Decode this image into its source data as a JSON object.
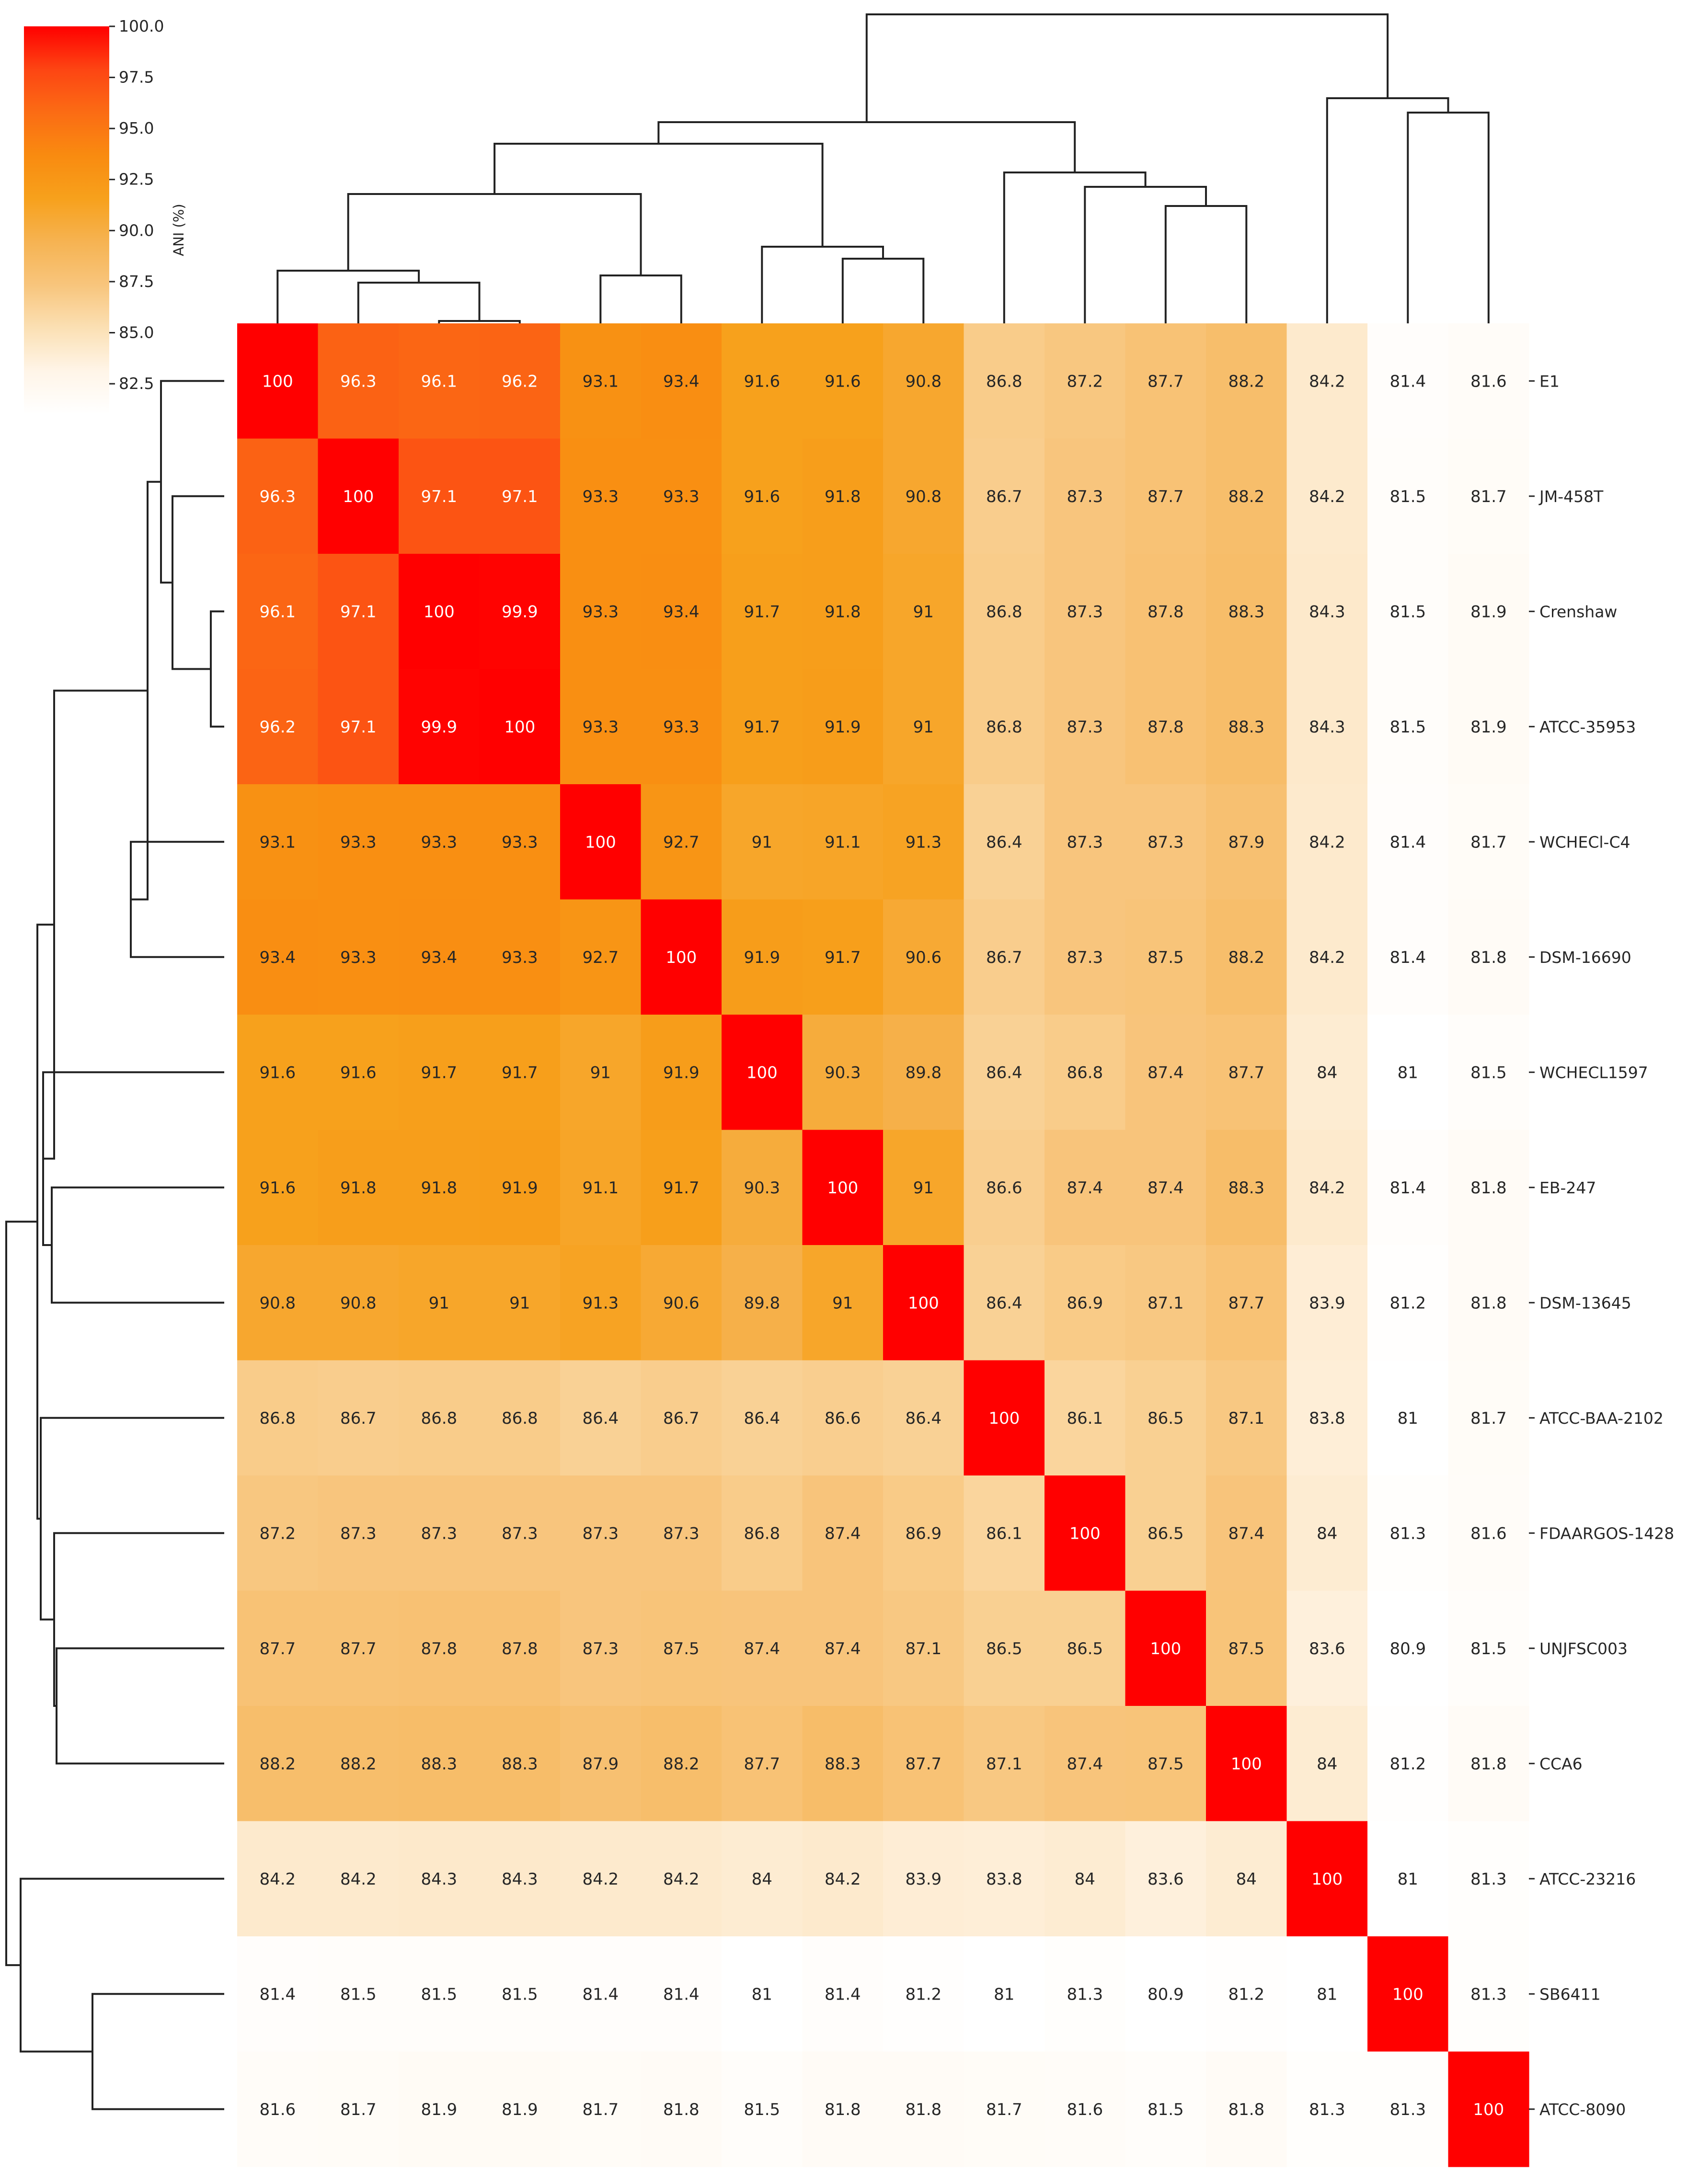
{
  "chart_data": {
    "type": "heatmap",
    "title": "",
    "xlabel": "",
    "ylabel": "",
    "labels": [
      "E1",
      "JM-458T",
      "Crenshaw",
      "ATCC-35953",
      "WCHECl-C4",
      "DSM-16690",
      "WCHECL1597",
      "EB-247",
      "DSM-13645",
      "ATCC-BAA-2102",
      "FDAARGOS-1428",
      "UNJFSC003",
      "CCA6",
      "ATCC-23216",
      "SB6411",
      "ATCC-8090"
    ],
    "matrix": [
      [
        100,
        96.3,
        96.1,
        96.2,
        93.1,
        93.4,
        91.6,
        91.6,
        90.8,
        86.8,
        87.2,
        87.7,
        88.2,
        84.2,
        81.4,
        81.6
      ],
      [
        96.3,
        100,
        97.1,
        97.1,
        93.3,
        93.3,
        91.6,
        91.8,
        90.8,
        86.7,
        87.3,
        87.7,
        88.2,
        84.2,
        81.5,
        81.7
      ],
      [
        96.1,
        97.1,
        100,
        99.9,
        93.3,
        93.4,
        91.7,
        91.8,
        91,
        86.8,
        87.3,
        87.8,
        88.3,
        84.3,
        81.5,
        81.9
      ],
      [
        96.2,
        97.1,
        99.9,
        100,
        93.3,
        93.3,
        91.7,
        91.9,
        91,
        86.8,
        87.3,
        87.8,
        88.3,
        84.3,
        81.5,
        81.9
      ],
      [
        93.1,
        93.3,
        93.3,
        93.3,
        100,
        92.7,
        91,
        91.1,
        91.3,
        86.4,
        87.3,
        87.3,
        87.9,
        84.2,
        81.4,
        81.7
      ],
      [
        93.4,
        93.3,
        93.4,
        93.3,
        92.7,
        100,
        91.9,
        91.7,
        90.6,
        86.7,
        87.3,
        87.5,
        88.2,
        84.2,
        81.4,
        81.8
      ],
      [
        91.6,
        91.6,
        91.7,
        91.7,
        91,
        91.9,
        100,
        90.3,
        89.8,
        86.4,
        86.8,
        87.4,
        87.7,
        84,
        81,
        81.5
      ],
      [
        91.6,
        91.8,
        91.8,
        91.9,
        91.1,
        91.7,
        90.3,
        100,
        91,
        86.6,
        87.4,
        87.4,
        88.3,
        84.2,
        81.4,
        81.8
      ],
      [
        90.8,
        90.8,
        91,
        91,
        91.3,
        90.6,
        89.8,
        91,
        100,
        86.4,
        86.9,
        87.1,
        87.7,
        83.9,
        81.2,
        81.8
      ],
      [
        86.8,
        86.7,
        86.8,
        86.8,
        86.4,
        86.7,
        86.4,
        86.6,
        86.4,
        100,
        86.1,
        86.5,
        87.1,
        83.8,
        81,
        81.7
      ],
      [
        87.2,
        87.3,
        87.3,
        87.3,
        87.3,
        87.3,
        86.8,
        87.4,
        86.9,
        86.1,
        100,
        86.5,
        87.4,
        84,
        81.3,
        81.6
      ],
      [
        87.7,
        87.7,
        87.8,
        87.8,
        87.3,
        87.5,
        87.4,
        87.4,
        87.1,
        86.5,
        86.5,
        100,
        87.5,
        83.6,
        80.9,
        81.5
      ],
      [
        88.2,
        88.2,
        88.3,
        88.3,
        87.9,
        88.2,
        87.7,
        88.3,
        87.7,
        87.1,
        87.4,
        87.5,
        100,
        84,
        81.2,
        81.8
      ],
      [
        84.2,
        84.2,
        84.3,
        84.3,
        84.2,
        84.2,
        84,
        84.2,
        83.9,
        83.8,
        84,
        83.6,
        84,
        100,
        81,
        81.3
      ],
      [
        81.4,
        81.5,
        81.5,
        81.5,
        81.4,
        81.4,
        81,
        81.4,
        81.2,
        81,
        81.3,
        80.9,
        81.2,
        81,
        100,
        81.3
      ],
      [
        81.6,
        81.7,
        81.9,
        81.9,
        81.7,
        81.8,
        81.5,
        81.8,
        81.8,
        81.7,
        81.6,
        81.5,
        81.8,
        81.3,
        81.3,
        100
      ]
    ],
    "value_range": [
      80.9,
      100
    ],
    "colormap": [
      "#ffffff",
      "#fff5e8",
      "#fbe0b4",
      "#f8c57c",
      "#f6b352",
      "#f7a11c",
      "#f98b10",
      "#fb6c14",
      "#fd4513",
      "#ff0000"
    ],
    "colorbar": {
      "label": "ANI (%)",
      "ticks": [
        "100.0",
        "97.5",
        "95.0",
        "92.5",
        "90.0",
        "87.5",
        "85.0",
        "82.5"
      ],
      "tick_values": [
        100,
        97.5,
        95,
        92.5,
        90,
        87.5,
        85,
        82.5
      ],
      "range": [
        81.0,
        100.0
      ]
    },
    "dendrogram": "both",
    "legend_position": "top-left"
  }
}
